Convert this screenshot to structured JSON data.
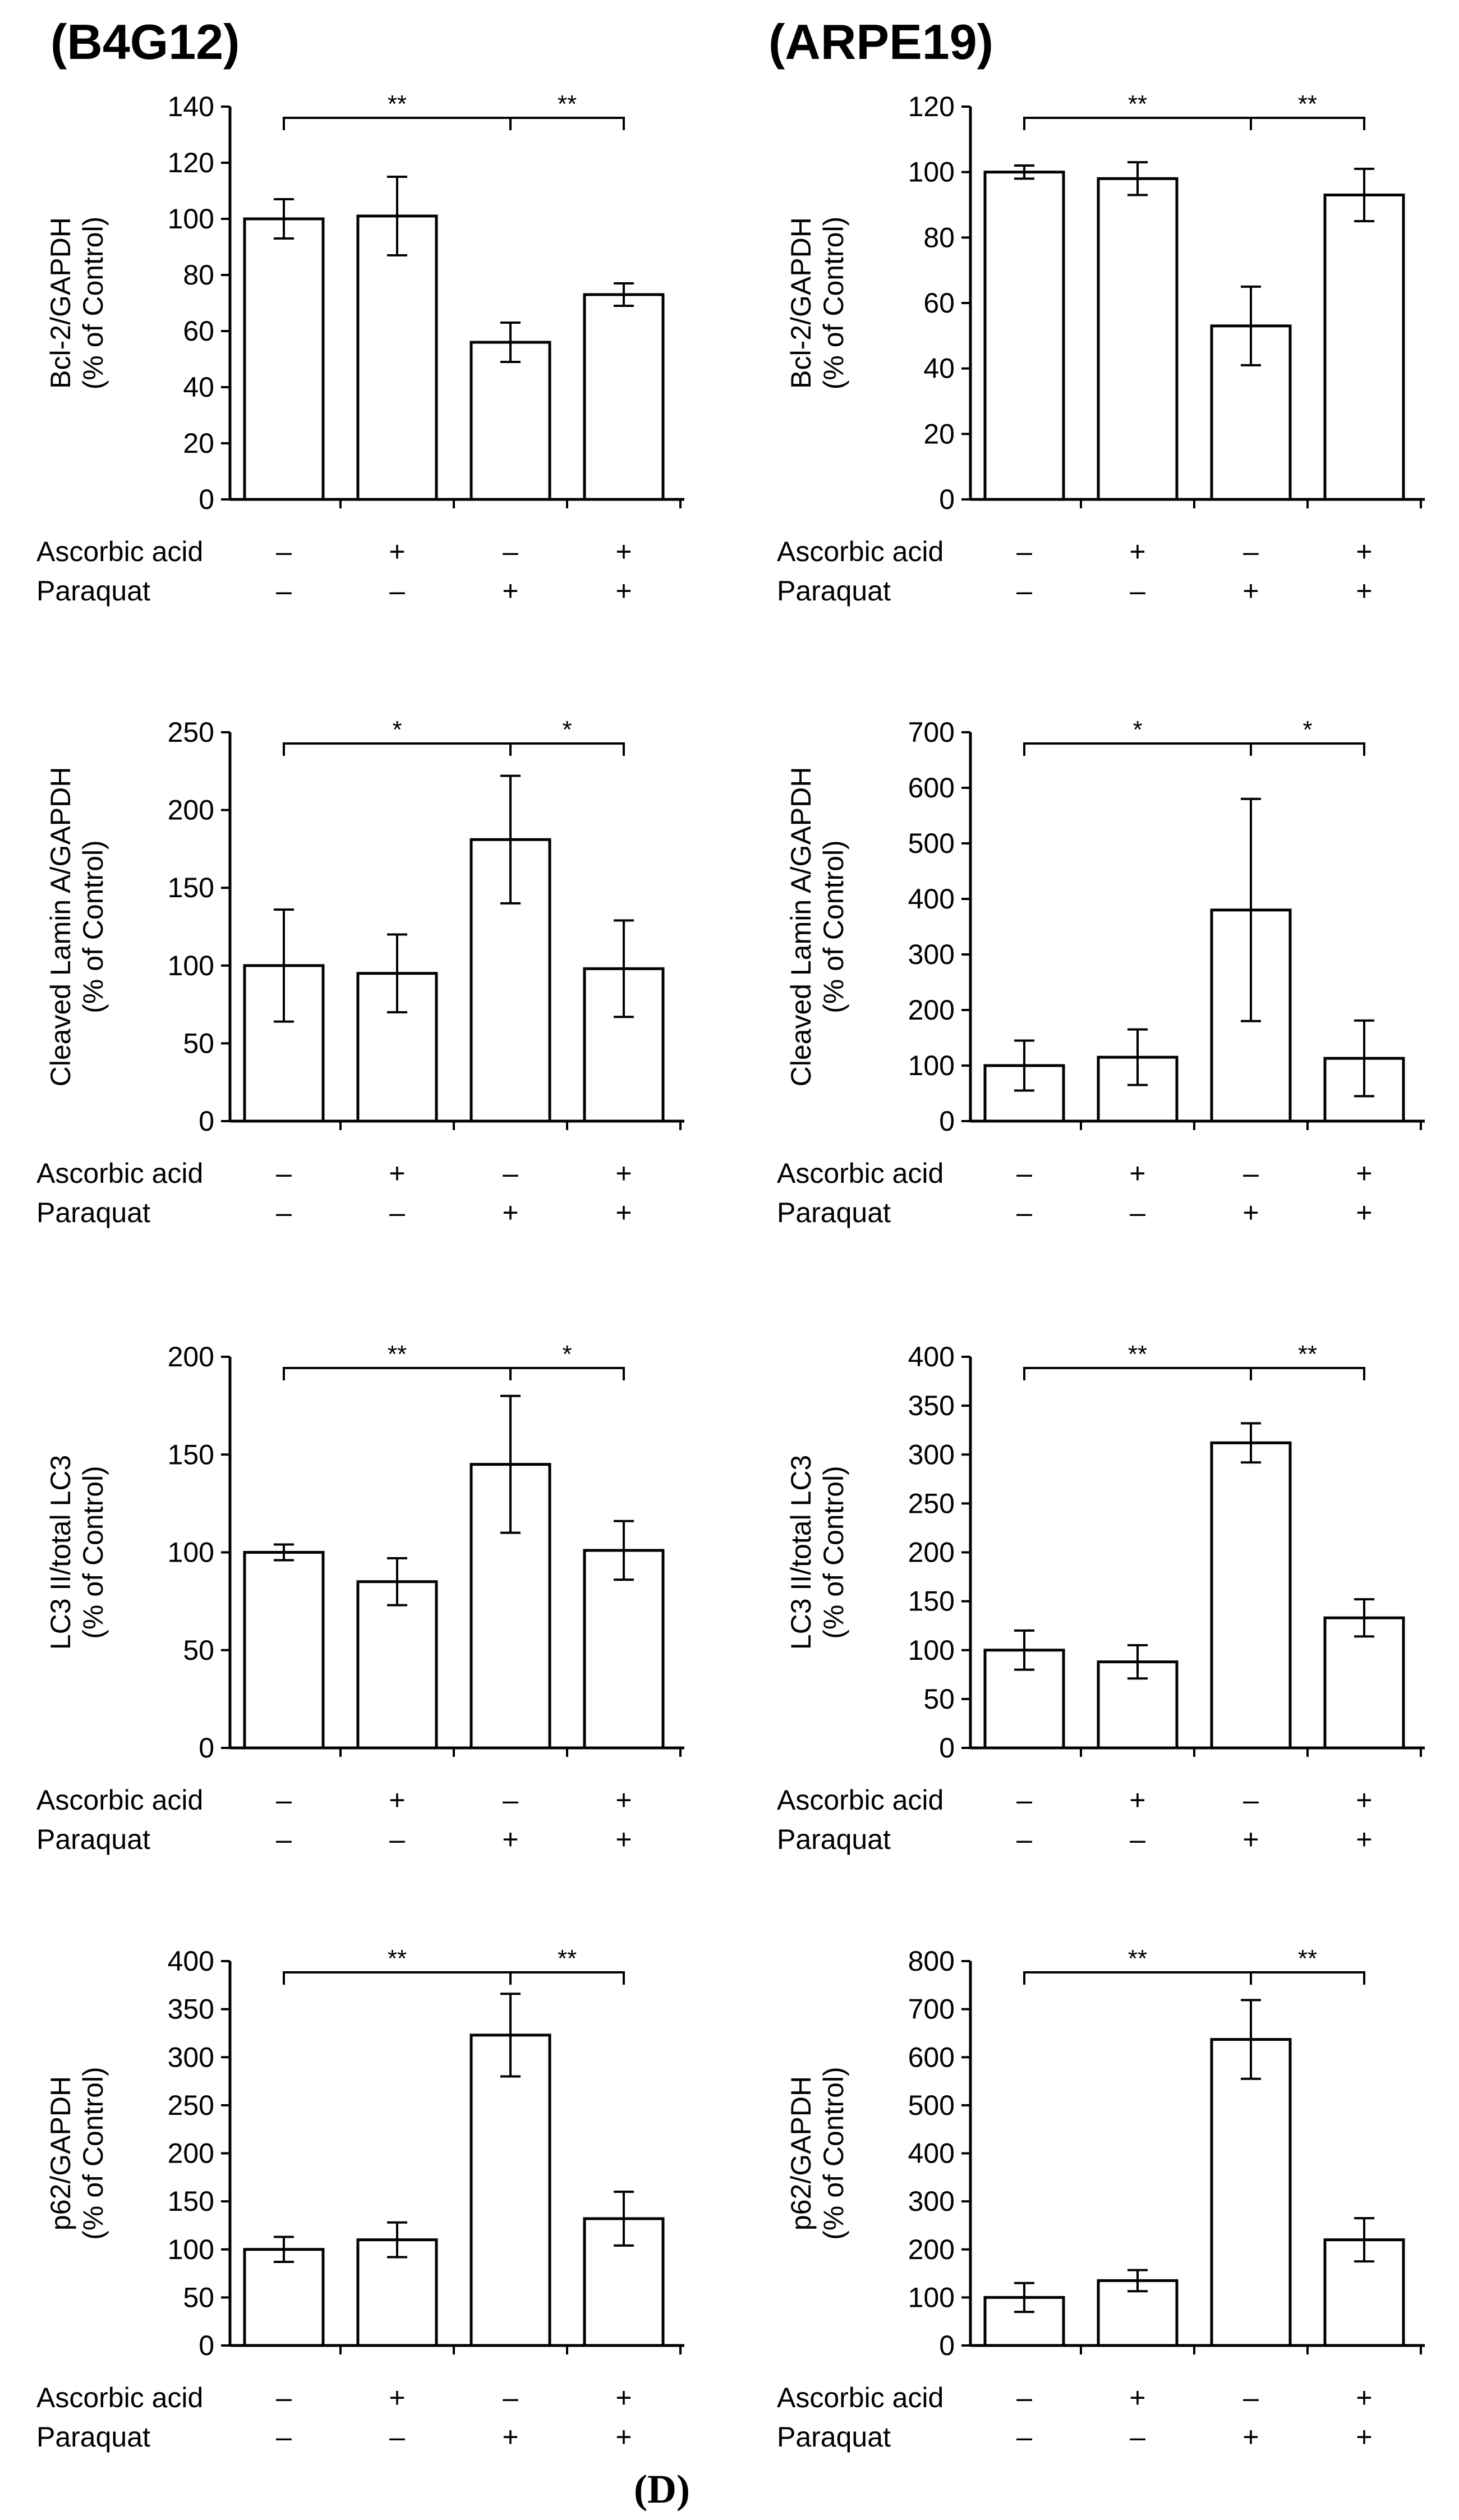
{
  "figure": {
    "column_titles": [
      "(B4G12)",
      "(ARPE19)"
    ],
    "panel_label": "(D)",
    "treatment_labels": [
      "Ascorbic acid",
      "Paraquat"
    ],
    "ascorbic_acid_signs": [
      "–",
      "+",
      "–",
      "+"
    ],
    "paraquat_signs": [
      "–",
      "–",
      "+",
      "+"
    ]
  },
  "colors": {
    "bar_fill": "#ffffff",
    "stroke": "#000000"
  },
  "chart_data": [
    {
      "id": "b4g12-bcl2",
      "type": "bar",
      "cell_line": "B4G12",
      "ylabel": "Bcl-2/GAPDH",
      "ylabel_sub": "(% of Control)",
      "ylim": [
        0,
        140
      ],
      "yticks": [
        0,
        20,
        40,
        60,
        80,
        100,
        120,
        140
      ],
      "values": [
        100,
        101,
        56,
        73
      ],
      "errors": [
        7,
        14,
        7,
        4
      ],
      "significance": [
        {
          "from": 0,
          "to": 2,
          "label": "**"
        },
        {
          "from": 2,
          "to": 3,
          "label": "**"
        }
      ]
    },
    {
      "id": "arpe19-bcl2",
      "type": "bar",
      "cell_line": "ARPE19",
      "ylabel": "Bcl-2/GAPDH",
      "ylabel_sub": "(% of Control)",
      "ylim": [
        0,
        120
      ],
      "yticks": [
        0,
        20,
        40,
        60,
        80,
        100,
        120
      ],
      "values": [
        100,
        98,
        53,
        93
      ],
      "errors": [
        2,
        5,
        12,
        8
      ],
      "significance": [
        {
          "from": 0,
          "to": 2,
          "label": "**"
        },
        {
          "from": 2,
          "to": 3,
          "label": "**"
        }
      ]
    },
    {
      "id": "b4g12-lamin",
      "type": "bar",
      "cell_line": "B4G12",
      "ylabel": "Cleaved Lamin A/GAPDH",
      "ylabel_sub": "(% of Control)",
      "ylim": [
        0,
        250
      ],
      "yticks": [
        0,
        50,
        100,
        150,
        200,
        250
      ],
      "values": [
        100,
        95,
        181,
        98
      ],
      "errors": [
        36,
        25,
        41,
        31
      ],
      "significance": [
        {
          "from": 0,
          "to": 2,
          "label": "*"
        },
        {
          "from": 2,
          "to": 3,
          "label": "*"
        }
      ]
    },
    {
      "id": "arpe19-lamin",
      "type": "bar",
      "cell_line": "ARPE19",
      "ylabel": "Cleaved Lamin A/GAPDH",
      "ylabel_sub": "(% of Control)",
      "ylim": [
        0,
        700
      ],
      "yticks": [
        0,
        100,
        200,
        300,
        400,
        500,
        600,
        700
      ],
      "values": [
        100,
        115,
        380,
        113
      ],
      "errors": [
        45,
        50,
        200,
        68
      ],
      "significance": [
        {
          "from": 0,
          "to": 2,
          "label": "*"
        },
        {
          "from": 2,
          "to": 3,
          "label": "*"
        }
      ]
    },
    {
      "id": "b4g12-lc3",
      "type": "bar",
      "cell_line": "B4G12",
      "ylabel": "LC3 II/total LC3",
      "ylabel_sub": "(% of Control)",
      "ylim": [
        0,
        200
      ],
      "yticks": [
        0,
        50,
        100,
        150,
        200
      ],
      "values": [
        100,
        85,
        145,
        101
      ],
      "errors": [
        4,
        12,
        35,
        15
      ],
      "significance": [
        {
          "from": 0,
          "to": 2,
          "label": "**"
        },
        {
          "from": 2,
          "to": 3,
          "label": "*"
        }
      ]
    },
    {
      "id": "arpe19-lc3",
      "type": "bar",
      "cell_line": "ARPE19",
      "ylabel": "LC3 II/total LC3",
      "ylabel_sub": "(% of Control)",
      "ylim": [
        0,
        400
      ],
      "yticks": [
        0,
        50,
        100,
        150,
        200,
        250,
        300,
        350,
        400
      ],
      "values": [
        100,
        88,
        312,
        133
      ],
      "errors": [
        20,
        17,
        20,
        19
      ],
      "significance": [
        {
          "from": 0,
          "to": 2,
          "label": "**"
        },
        {
          "from": 2,
          "to": 3,
          "label": "**"
        }
      ]
    },
    {
      "id": "b4g12-p62",
      "type": "bar",
      "cell_line": "B4G12",
      "ylabel": "p62/GAPDH",
      "ylabel_sub": "(% of Control)",
      "ylim": [
        0,
        400
      ],
      "yticks": [
        0,
        50,
        100,
        150,
        200,
        250,
        300,
        350,
        400
      ],
      "values": [
        100,
        110,
        323,
        132
      ],
      "errors": [
        13,
        18,
        43,
        28
      ],
      "significance": [
        {
          "from": 0,
          "to": 2,
          "label": "**"
        },
        {
          "from": 2,
          "to": 3,
          "label": "**"
        }
      ]
    },
    {
      "id": "arpe19-p62",
      "type": "bar",
      "cell_line": "ARPE19",
      "ylabel": "p62/GAPDH",
      "ylabel_sub": "(% of Control)",
      "ylim": [
        0,
        800
      ],
      "yticks": [
        0,
        100,
        200,
        300,
        400,
        500,
        600,
        700,
        800
      ],
      "values": [
        100,
        135,
        637,
        220
      ],
      "errors": [
        30,
        22,
        82,
        45
      ],
      "significance": [
        {
          "from": 0,
          "to": 2,
          "label": "**"
        },
        {
          "from": 2,
          "to": 3,
          "label": "**"
        }
      ]
    }
  ]
}
